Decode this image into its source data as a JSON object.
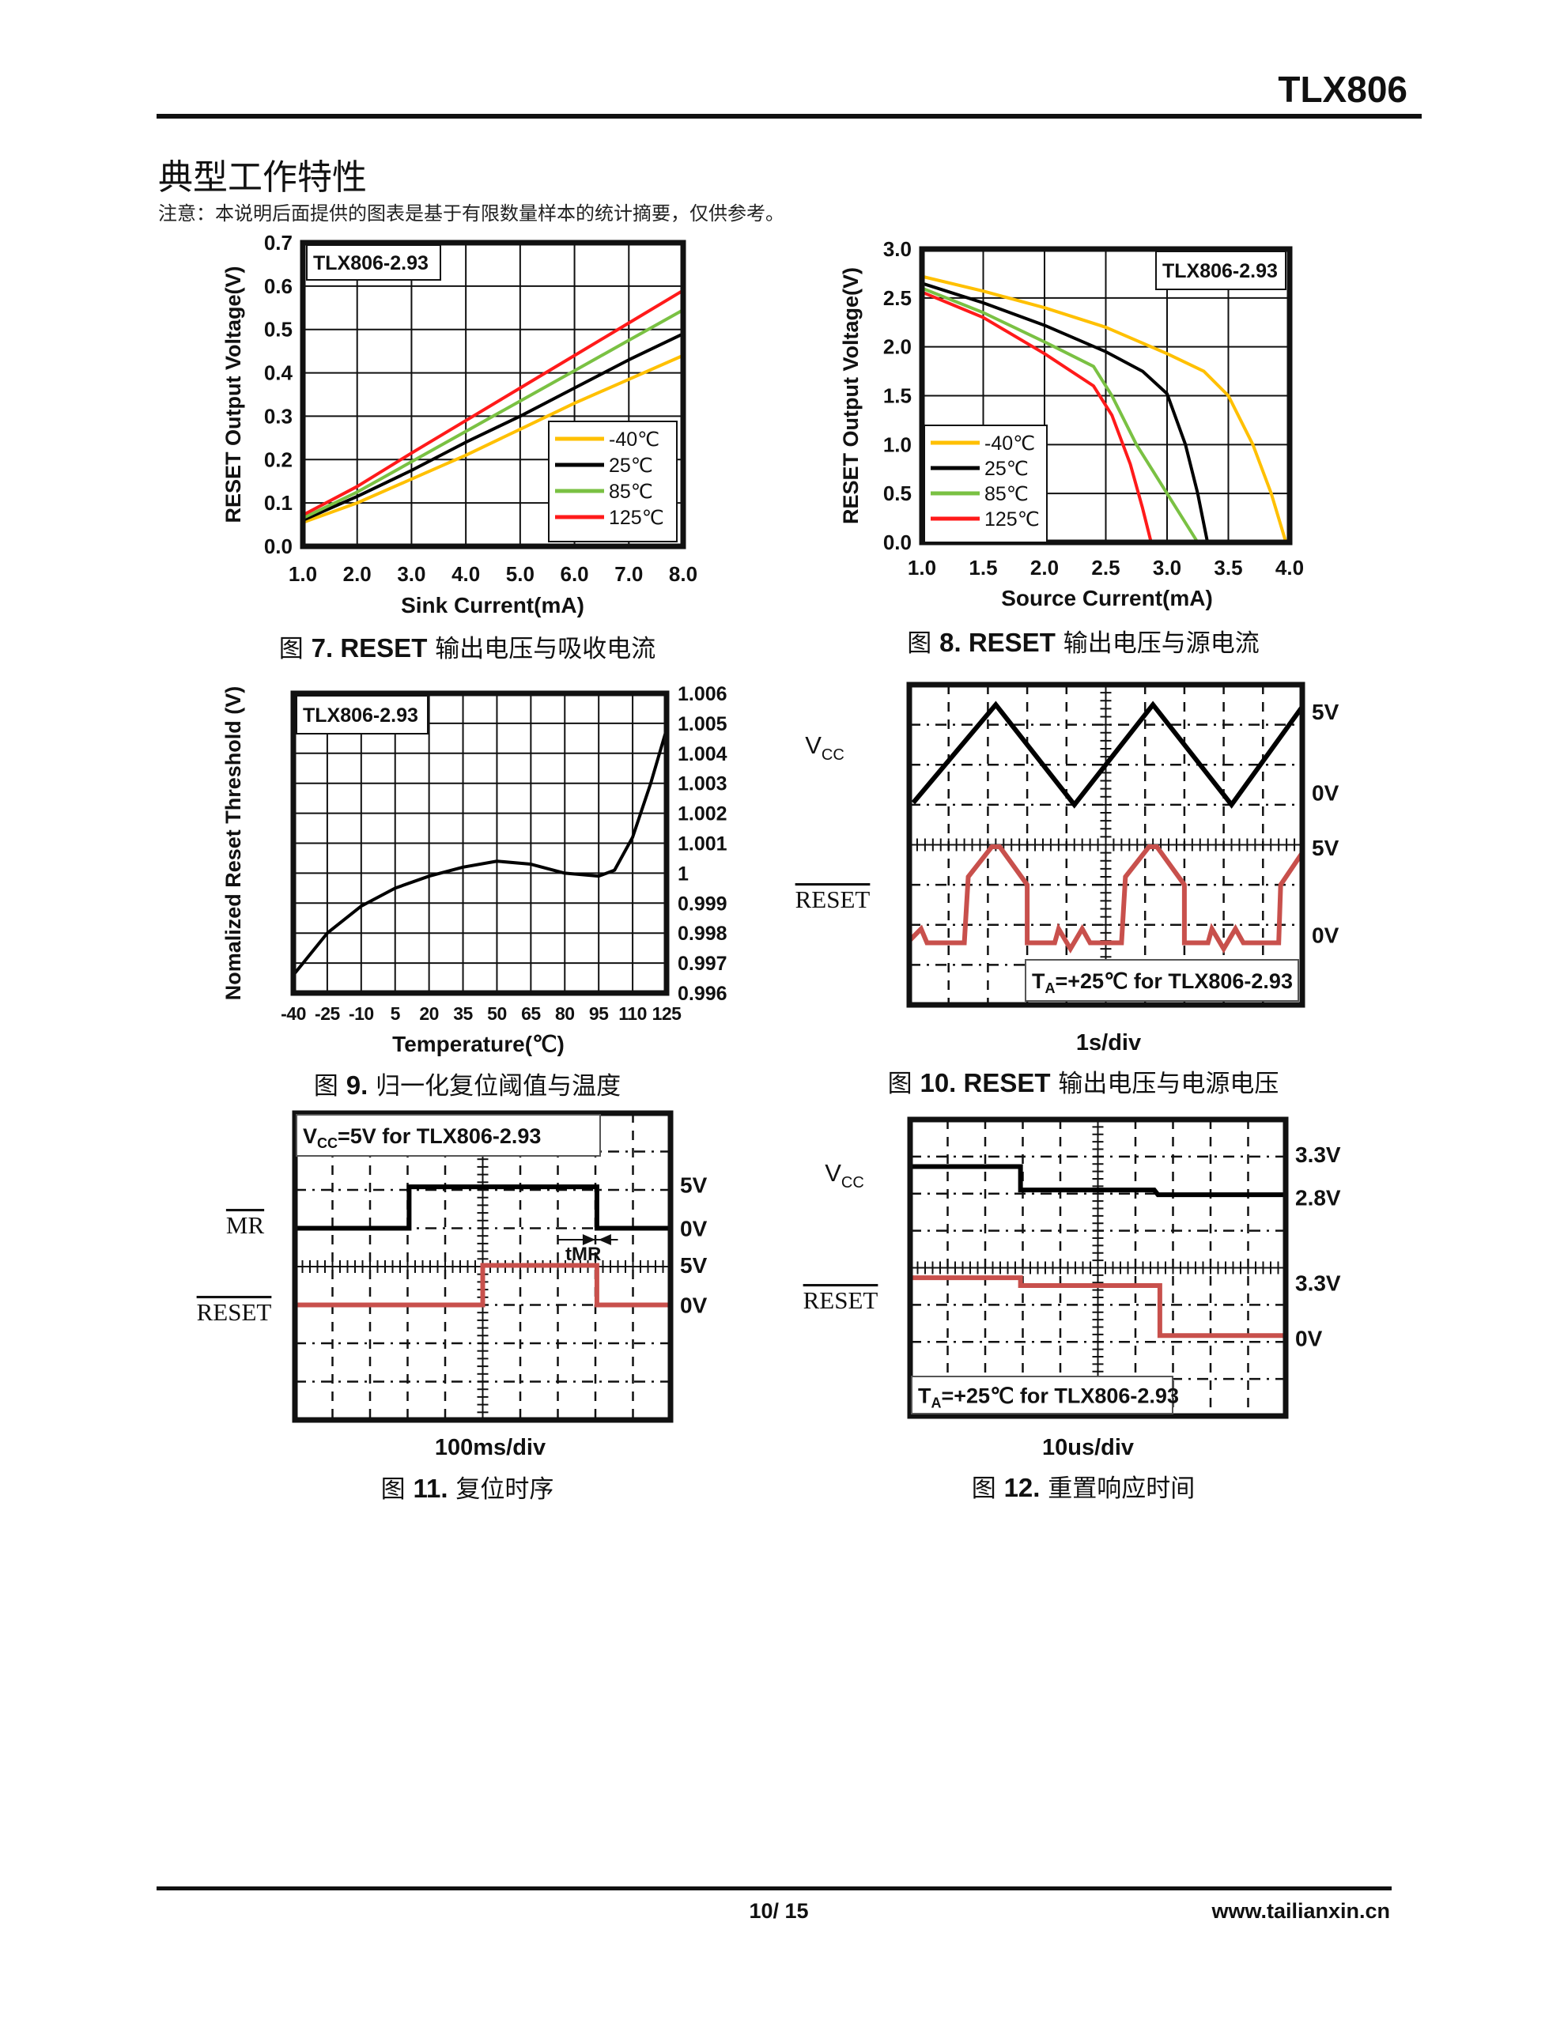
{
  "header": {
    "product": "TLX806"
  },
  "section": {
    "title": "典型工作特性",
    "note": "注意：本说明后面提供的图表是基于有限数量样本的统计摘要，仅供参考。"
  },
  "captions": [
    {
      "prefix": "图 ",
      "bold": "7. RESET",
      "rest": " 输出电压与吸收电流"
    },
    {
      "prefix": "图 ",
      "bold": "8. RESET",
      "rest": " 输出电压与源电流"
    },
    {
      "prefix": "图 ",
      "bold": "9.",
      "rest": " 归一化复位阈值与温度"
    },
    {
      "prefix": "图 ",
      "bold": "10. RESET",
      "rest": " 输出电压与电源电压"
    },
    {
      "prefix": "图 ",
      "bold": "11.",
      "rest": " 复位时序"
    },
    {
      "prefix": "图 ",
      "bold": "12.",
      "rest": " 重置响应时间"
    }
  ],
  "chart_data": [
    {
      "type": "line",
      "annotation": "TLX806-2.93",
      "xlabel": "Sink Current(mA)",
      "ylabel": "RESET Output Voltage(V)",
      "xlim": [
        1,
        8
      ],
      "ylim": [
        0,
        0.7
      ],
      "grid": true,
      "xticks": [
        "1.0",
        "2.0",
        "3.0",
        "4.0",
        "5.0",
        "6.0",
        "7.0",
        "8.0"
      ],
      "yticks": [
        "0.0",
        "0.1",
        "0.2",
        "0.3",
        "0.4",
        "0.5",
        "0.6",
        "0.7"
      ],
      "legend_position": "bottom-right",
      "series": [
        {
          "name": "-40℃",
          "color": "#ffc000",
          "x": [
            1,
            2,
            3,
            4,
            5,
            6,
            7,
            8
          ],
          "y": [
            0.055,
            0.1,
            0.155,
            0.21,
            0.27,
            0.33,
            0.385,
            0.44
          ]
        },
        {
          "name": "25℃",
          "color": "#000000",
          "x": [
            1,
            2,
            3,
            4,
            5,
            6,
            7,
            8
          ],
          "y": [
            0.06,
            0.115,
            0.175,
            0.24,
            0.3,
            0.365,
            0.43,
            0.49
          ]
        },
        {
          "name": "85℃",
          "color": "#7ac143",
          "x": [
            1,
            2,
            3,
            4,
            5,
            6,
            7,
            8
          ],
          "y": [
            0.065,
            0.125,
            0.195,
            0.265,
            0.335,
            0.405,
            0.475,
            0.545
          ]
        },
        {
          "name": "125℃",
          "color": "#ff1a1a",
          "x": [
            1,
            2,
            3,
            4,
            5,
            6,
            7,
            8
          ],
          "y": [
            0.072,
            0.138,
            0.215,
            0.29,
            0.365,
            0.44,
            0.515,
            0.59
          ]
        }
      ]
    },
    {
      "type": "line",
      "annotation": "TLX806-2.93",
      "xlabel": "Source Current(mA)",
      "ylabel": "RESET Output Voltage(V)",
      "xlim": [
        1,
        4
      ],
      "ylim": [
        0,
        3
      ],
      "grid": true,
      "xticks": [
        "1.0",
        "1.5",
        "2.0",
        "2.5",
        "3.0",
        "3.5",
        "4.0"
      ],
      "yticks": [
        "0.0",
        "0.5",
        "1.0",
        "1.5",
        "2.0",
        "2.5",
        "3.0"
      ],
      "legend_position": "bottom-left",
      "series": [
        {
          "name": "-40℃",
          "color": "#ffc000",
          "x": [
            1,
            1.5,
            2,
            2.5,
            3,
            3.3,
            3.5,
            3.7,
            3.85,
            3.97
          ],
          "y": [
            2.72,
            2.57,
            2.4,
            2.2,
            1.93,
            1.75,
            1.5,
            1.0,
            0.5,
            0
          ]
        },
        {
          "name": "25℃",
          "color": "#000000",
          "x": [
            1,
            1.5,
            2,
            2.5,
            2.8,
            3.0,
            3.15,
            3.25,
            3.33
          ],
          "y": [
            2.65,
            2.45,
            2.22,
            1.95,
            1.75,
            1.52,
            1.0,
            0.5,
            0
          ]
        },
        {
          "name": "85℃",
          "color": "#7ac143",
          "x": [
            1,
            1.5,
            2,
            2.4,
            2.55,
            2.75,
            3.0,
            3.25
          ],
          "y": [
            2.6,
            2.35,
            2.05,
            1.8,
            1.5,
            1.0,
            0.5,
            0
          ]
        },
        {
          "name": "125℃",
          "color": "#ff1a1a",
          "x": [
            1,
            1.5,
            2,
            2.4,
            2.55,
            2.7,
            2.8,
            2.87
          ],
          "y": [
            2.56,
            2.3,
            1.93,
            1.6,
            1.3,
            0.8,
            0.35,
            0
          ]
        }
      ]
    },
    {
      "type": "line",
      "annotation": "TLX806-2.93",
      "xlabel": "Temperature(℃)",
      "ylabel": "Nomalized Reset Threshold (V)",
      "xlim": [
        -40,
        125
      ],
      "ylim": [
        0.996,
        1.006
      ],
      "grid": true,
      "xticks": [
        "-40",
        "-25",
        "-10",
        "5",
        "20",
        "35",
        "50",
        "65",
        "80",
        "95",
        "110",
        "125"
      ],
      "yticks": [
        "0.996",
        "0.997",
        "0.998",
        "0.999",
        "1",
        "1.001",
        "1.002",
        "1.003",
        "1.004",
        "1.005",
        "1.006"
      ],
      "yaxis_side": "right",
      "series": [
        {
          "name": "TLX806-2.93",
          "color": "#000000",
          "x": [
            -40,
            -25,
            -10,
            5,
            20,
            35,
            50,
            65,
            80,
            95,
            102,
            110,
            118,
            125
          ],
          "y": [
            0.9966,
            0.998,
            0.9989,
            0.9995,
            0.9999,
            1.0002,
            1.0004,
            1.0003,
            1.0,
            0.9999,
            1.0001,
            1.0012,
            1.003,
            1.0048
          ]
        }
      ]
    },
    {
      "type": "line",
      "subtype": "oscilloscope",
      "annotation": {
        "main": "T",
        "sub": "A",
        "rest": "=+25℃ for TLX806-2.93"
      },
      "timebase": "1s/div",
      "level_labels": [
        "5V",
        "0V",
        "5V",
        "0V"
      ],
      "traces": [
        {
          "name": "Vcc",
          "label": "V",
          "label_sub": "CC",
          "color": "#000000",
          "points": [
            [
              0.1,
              2.95
            ],
            [
              2.2,
              0.5
            ],
            [
              4.2,
              3.0
            ],
            [
              6.2,
              0.5
            ],
            [
              8.2,
              3.0
            ],
            [
              10,
              0.55
            ]
          ]
        },
        {
          "name": "RESET",
          "label": "RESET",
          "overline": true,
          "color": "#c8504c",
          "points": [
            [
              0,
              6.4
            ],
            [
              0.3,
              6.1
            ],
            [
              0.45,
              6.45
            ],
            [
              1.4,
              6.45
            ],
            [
              1.5,
              4.8
            ],
            [
              2.1,
              4.05
            ],
            [
              2.3,
              4.05
            ],
            [
              3.0,
              5.0
            ],
            [
              3.0,
              6.45
            ],
            [
              3.7,
              6.45
            ],
            [
              3.8,
              6.1
            ],
            [
              4.1,
              6.6
            ],
            [
              4.4,
              6.1
            ],
            [
              4.6,
              6.45
            ],
            [
              5.4,
              6.45
            ],
            [
              5.5,
              4.8
            ],
            [
              6.1,
              4.05
            ],
            [
              6.3,
              4.05
            ],
            [
              7.0,
              5.0
            ],
            [
              7.0,
              6.45
            ],
            [
              7.6,
              6.45
            ],
            [
              7.7,
              6.1
            ],
            [
              8.0,
              6.6
            ],
            [
              8.3,
              6.1
            ],
            [
              8.5,
              6.45
            ],
            [
              9.4,
              6.45
            ],
            [
              9.45,
              5.0
            ],
            [
              10,
              4.2
            ]
          ]
        }
      ]
    },
    {
      "type": "line",
      "subtype": "oscilloscope",
      "annotation": {
        "main": "V",
        "sub": "CC",
        "rest": "=5V for TLX806-2.93"
      },
      "timebase": "100ms/div",
      "level_labels": [
        "5V",
        "0V",
        "5V",
        "0V"
      ],
      "marker": "tMR",
      "traces": [
        {
          "name": "MR",
          "label": "MR",
          "overline": true,
          "color": "#000000",
          "points": [
            [
              0,
              3.0
            ],
            [
              3.04,
              3.0
            ],
            [
              3.04,
              1.92
            ],
            [
              8.04,
              1.92
            ],
            [
              8.04,
              3.0
            ],
            [
              10,
              3.0
            ]
          ]
        },
        {
          "name": "RESET",
          "label": "RESET",
          "overline": true,
          "color": "#c8504c",
          "points": [
            [
              0,
              5.0
            ],
            [
              5.0,
              5.0
            ],
            [
              5.0,
              3.97
            ],
            [
              8.04,
              3.97
            ],
            [
              8.04,
              5.0
            ],
            [
              10,
              5.0
            ]
          ]
        }
      ]
    },
    {
      "type": "line",
      "subtype": "oscilloscope",
      "annotation": {
        "main": "T",
        "sub": "A",
        "rest": "=+25℃ for TLX806-2.93"
      },
      "timebase": "10us/div",
      "level_labels": [
        "3.3V",
        "2.8V",
        "3.3V",
        "0V"
      ],
      "traces": [
        {
          "name": "Vcc",
          "label": "V",
          "label_sub": "CC",
          "color": "#000000",
          "points": [
            [
              0,
              1.27
            ],
            [
              2.94,
              1.27
            ],
            [
              2.94,
              1.9
            ],
            [
              6.5,
              1.9
            ],
            [
              6.6,
              2.03
            ],
            [
              10,
              2.03
            ]
          ]
        },
        {
          "name": "RESET",
          "label": "RESET",
          "overline": true,
          "color": "#c8504c",
          "points": [
            [
              0,
              4.27
            ],
            [
              2.94,
              4.27
            ],
            [
              2.94,
              4.48
            ],
            [
              6.65,
              4.48
            ],
            [
              6.65,
              5.83
            ],
            [
              10,
              5.83
            ]
          ]
        }
      ]
    }
  ],
  "footer": {
    "page": "10/ 15",
    "website": "www.tailianxin.cn"
  }
}
